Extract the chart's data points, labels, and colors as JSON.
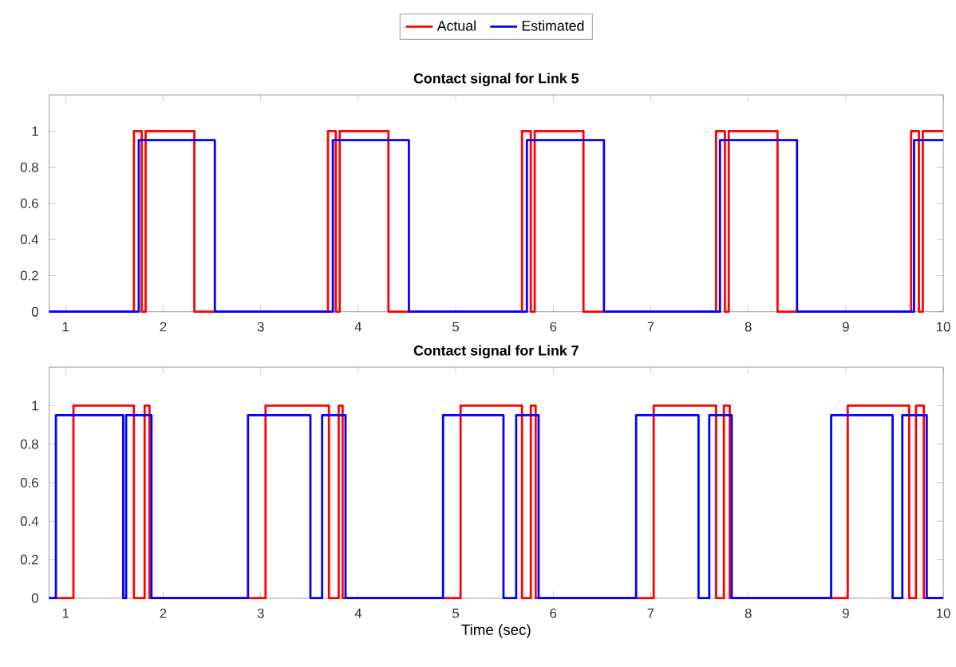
{
  "chart_data": [
    {
      "type": "step",
      "title": "Contact signal for Link 5",
      "xlim": [
        0.83,
        10
      ],
      "ylim": [
        0,
        1.2
      ],
      "xticks": [
        1,
        2,
        3,
        4,
        5,
        6,
        7,
        8,
        9,
        10
      ],
      "yticks": [
        0,
        0.2,
        0.4,
        0.6,
        0.8,
        1
      ],
      "legend": "top",
      "marker": "none",
      "line_style": "solid",
      "grid": false,
      "series": [
        {
          "name": "Actual",
          "color": "#ff0000",
          "x": [
            0.83,
            1.7,
            1.78,
            1.82,
            2.32,
            3.69,
            3.77,
            3.81,
            4.31,
            5.68,
            5.77,
            5.81,
            6.31,
            7.67,
            7.76,
            7.8,
            8.3,
            9.67,
            9.75,
            9.79,
            10
          ],
          "values": [
            0,
            1,
            0,
            1,
            0,
            1,
            0,
            1,
            0,
            1,
            0,
            1,
            0,
            1,
            0,
            1,
            0,
            1,
            0,
            1,
            1
          ]
        },
        {
          "name": "Estimated",
          "color": "#0000ff",
          "x": [
            0.83,
            1.75,
            2.53,
            3.74,
            4.52,
            5.73,
            6.52,
            7.71,
            8.5,
            9.7,
            10
          ],
          "values": [
            0,
            0.95,
            0,
            0.95,
            0,
            0.95,
            0,
            0.95,
            0,
            0.95,
            0.95
          ]
        }
      ]
    },
    {
      "type": "step",
      "title": "Contact signal for Link 7",
      "xlabel": "Time (sec)",
      "xlim": [
        0.83,
        10
      ],
      "ylim": [
        0,
        1.2
      ],
      "xticks": [
        1,
        2,
        3,
        4,
        5,
        6,
        7,
        8,
        9,
        10
      ],
      "yticks": [
        0,
        0.2,
        0.4,
        0.6,
        0.8,
        1
      ],
      "marker": "none",
      "line_style": "solid",
      "grid": false,
      "series": [
        {
          "color": "#ff0000",
          "x": [
            0.83,
            1.08,
            1.7,
            1.81,
            1.86,
            3.05,
            3.7,
            3.8,
            3.84,
            5.05,
            5.68,
            5.77,
            5.82,
            7.03,
            7.67,
            7.75,
            7.81,
            9.02,
            9.65,
            9.72,
            9.8,
            10
          ],
          "values": [
            0,
            1,
            0,
            1,
            0,
            1,
            0,
            1,
            0,
            1,
            0,
            1,
            0,
            1,
            0,
            1,
            0,
            1,
            0,
            1,
            0,
            0
          ]
        },
        {
          "color": "#0000ff",
          "x": [
            0.83,
            0.9,
            1.59,
            1.62,
            1.88,
            2.87,
            3.51,
            3.63,
            3.87,
            4.87,
            5.49,
            5.62,
            5.85,
            6.85,
            7.49,
            7.6,
            7.83,
            8.85,
            9.48,
            9.58,
            9.83,
            10
          ],
          "values": [
            0,
            0.95,
            0,
            0.95,
            0,
            0.95,
            0,
            0.95,
            0,
            0.95,
            0,
            0.95,
            0,
            0.95,
            0,
            0.95,
            0,
            0.95,
            0,
            0.95,
            0,
            0
          ]
        }
      ]
    }
  ]
}
